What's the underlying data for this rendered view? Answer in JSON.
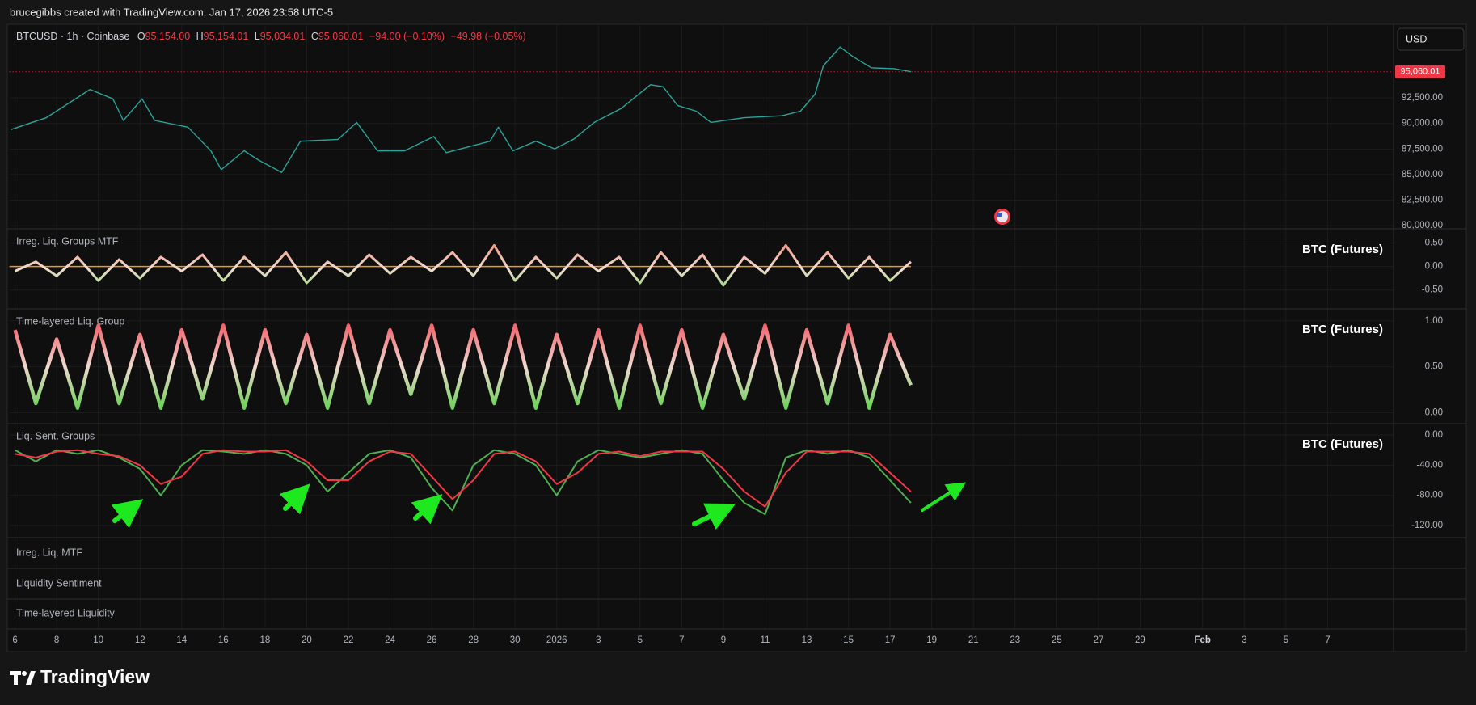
{
  "header": {
    "text": "brucegibbs created with TradingView.com, Jan 17, 2026 23:58 UTC-5"
  },
  "legend": {
    "symbol": "BTCUSD · 1h · Coinbase",
    "open_label": "O",
    "open": "95,154.00",
    "high_label": "H",
    "high": "95,154.01",
    "low_label": "L",
    "low": "95,034.01",
    "close_label": "C",
    "close": "95,060.01",
    "change": "−94.00 (−0.10%)",
    "change2": "−49.98 (−0.05%)"
  },
  "controls": {
    "currency": "USD"
  },
  "empty_panes": [
    "Irreg. Liq. MTF",
    "Liquidity Sentiment",
    "Time-layered Liquidity"
  ],
  "footer": {
    "logo": "TradingView"
  },
  "chart_data": [
    {
      "type": "line",
      "color": "#26a69a",
      "grid": true,
      "x": [
        -0.2,
        1.5,
        3.6,
        4.7,
        5.2,
        6.1,
        6.7,
        8.3,
        9.4,
        9.9,
        11.0,
        11.7,
        12.8,
        13.7,
        15.5,
        16.4,
        17.4,
        18.7,
        20.1,
        20.7,
        22.8,
        23.2,
        23.9,
        25.0,
        25.9,
        26.8,
        27.8,
        29.1,
        30.5,
        31.1,
        31.8,
        32.7,
        33.4,
        35.0,
        36.8,
        37.7,
        38.4,
        38.8,
        39.6,
        40.2,
        41.1,
        42.2,
        43.0
      ],
      "values": [
        89400,
        90560,
        93330,
        92400,
        90290,
        92400,
        90290,
        89640,
        87330,
        85490,
        87330,
        86410,
        85210,
        88260,
        88440,
        90100,
        87330,
        87330,
        88720,
        87150,
        88260,
        89640,
        87330,
        88260,
        87520,
        88440,
        90100,
        91480,
        93790,
        93600,
        91760,
        91200,
        90100,
        90560,
        90750,
        91200,
        92870,
        95640,
        97480,
        96560,
        95450,
        95360,
        95060.01
      ],
      "last_price": {
        "value": 95060.01,
        "label": "95,060.01",
        "color": "#f23645"
      },
      "xlim": [
        -0.27,
        66.15
      ],
      "xticks": [
        {
          "value": 0,
          "label": "6"
        },
        {
          "value": 2,
          "label": "8"
        },
        {
          "value": 4,
          "label": "10"
        },
        {
          "value": 6,
          "label": "12"
        },
        {
          "value": 8,
          "label": "14"
        },
        {
          "value": 10,
          "label": "16"
        },
        {
          "value": 12,
          "label": "18"
        },
        {
          "value": 14,
          "label": "20"
        },
        {
          "value": 16,
          "label": "22"
        },
        {
          "value": 18,
          "label": "24"
        },
        {
          "value": 20,
          "label": "26"
        },
        {
          "value": 22,
          "label": "28"
        },
        {
          "value": 24,
          "label": "30"
        },
        {
          "value": 26,
          "label": "2026"
        },
        {
          "value": 28,
          "label": "3"
        },
        {
          "value": 30,
          "label": "5"
        },
        {
          "value": 32,
          "label": "7"
        },
        {
          "value": 34,
          "label": "9"
        },
        {
          "value": 36,
          "label": "11"
        },
        {
          "value": 38,
          "label": "13"
        },
        {
          "value": 40,
          "label": "15"
        },
        {
          "value": 42,
          "label": "17"
        },
        {
          "value": 44,
          "label": "19"
        },
        {
          "value": 46,
          "label": "21"
        },
        {
          "value": 48,
          "label": "23"
        },
        {
          "value": 50,
          "label": "25"
        },
        {
          "value": 52,
          "label": "27"
        },
        {
          "value": 54,
          "label": "29"
        },
        {
          "value": 57,
          "label": "Feb"
        },
        {
          "value": 59,
          "label": "3"
        },
        {
          "value": 61,
          "label": "5"
        },
        {
          "value": 63,
          "label": "7"
        }
      ],
      "ylim": [
        79700,
        99700
      ],
      "yticks": [
        {
          "value": 92500,
          "label": "92,500.00"
        },
        {
          "value": 90000,
          "label": "90,000.00"
        },
        {
          "value": 87500,
          "label": "87,500.00"
        },
        {
          "value": 85000,
          "label": "85,000.00"
        },
        {
          "value": 82500,
          "label": "82,500.00"
        },
        {
          "value": 80000,
          "label": "80,000.00"
        }
      ]
    },
    {
      "type": "line",
      "title": "Irreg. Liq. Groups MTF",
      "label": "BTC (Futures)",
      "grid": true,
      "colors": [
        "#f2705a",
        "#f0dcd0",
        "#49d12c"
      ],
      "baseline": 0,
      "baseline_color": "#ff9800",
      "x": [
        0,
        1,
        2,
        3,
        4,
        5,
        6,
        7,
        8,
        9,
        10,
        11,
        12,
        13,
        14,
        15,
        16,
        17,
        18,
        19,
        20,
        21,
        22,
        23,
        24,
        25,
        26,
        27,
        28,
        29,
        30,
        31,
        32,
        33,
        34,
        35,
        36,
        37,
        38,
        39,
        40,
        41,
        42,
        43
      ],
      "values": [
        -0.1,
        0.1,
        -0.2,
        0.2,
        -0.3,
        0.15,
        -0.25,
        0.2,
        -0.1,
        0.25,
        -0.3,
        0.2,
        -0.2,
        0.3,
        -0.35,
        0.1,
        -0.2,
        0.25,
        -0.15,
        0.2,
        -0.1,
        0.3,
        -0.2,
        0.45,
        -0.3,
        0.2,
        -0.25,
        0.25,
        -0.1,
        0.2,
        -0.35,
        0.3,
        -0.2,
        0.25,
        -0.4,
        0.2,
        -0.15,
        0.45,
        -0.2,
        0.3,
        -0.25,
        0.2,
        -0.3,
        0.1
      ],
      "ylim": [
        -0.9,
        0.8
      ],
      "yticks": [
        {
          "value": 0.5,
          "label": "0.50"
        },
        {
          "value": 0,
          "label": "0.00"
        },
        {
          "value": -0.5,
          "label": "-0.50"
        }
      ]
    },
    {
      "type": "line",
      "title": "Time-layered Liq. Group",
      "label": "BTC (Futures)",
      "grid": true,
      "colors": [
        "#f23645",
        "#f0d8d0",
        "#3ccf2a"
      ],
      "x": [
        0,
        1,
        2,
        3,
        4,
        5,
        6,
        7,
        8,
        9,
        10,
        11,
        12,
        13,
        14,
        15,
        16,
        17,
        18,
        19,
        20,
        21,
        22,
        23,
        24,
        25,
        26,
        27,
        28,
        29,
        30,
        31,
        32,
        33,
        34,
        35,
        36,
        37,
        38,
        39,
        40,
        41,
        42,
        43
      ],
      "values": [
        0.9,
        0.1,
        0.8,
        0.05,
        0.95,
        0.1,
        0.85,
        0.05,
        0.9,
        0.15,
        0.95,
        0.05,
        0.9,
        0.1,
        0.85,
        0.05,
        0.95,
        0.1,
        0.9,
        0.2,
        0.95,
        0.05,
        0.9,
        0.1,
        0.95,
        0.05,
        0.85,
        0.1,
        0.9,
        0.05,
        0.95,
        0.1,
        0.9,
        0.05,
        0.85,
        0.15,
        0.95,
        0.05,
        0.9,
        0.1,
        0.95,
        0.05,
        0.85,
        0.3
      ],
      "ylim": [
        -0.12,
        1.13
      ],
      "yticks": [
        {
          "value": 1,
          "label": "1.00"
        },
        {
          "value": 0.5,
          "label": "0.50"
        },
        {
          "value": 0,
          "label": "0.00"
        }
      ]
    },
    {
      "type": "line",
      "title": "Liq. Sent. Groups",
      "label": "BTC (Futures)",
      "grid": true,
      "x": [
        0,
        1,
        2,
        3,
        4,
        5,
        6,
        7,
        8,
        9,
        10,
        11,
        12,
        13,
        14,
        15,
        16,
        17,
        18,
        19,
        20,
        21,
        22,
        23,
        24,
        25,
        26,
        27,
        28,
        29,
        30,
        31,
        32,
        33,
        34,
        35,
        36,
        37,
        38,
        39,
        40,
        41,
        42,
        43
      ],
      "series": [
        {
          "color": "#4caf50",
          "values": [
            -20,
            -35,
            -20,
            -25,
            -20,
            -30,
            -45,
            -80,
            -40,
            -20,
            -22,
            -25,
            -20,
            -25,
            -40,
            -75,
            -50,
            -25,
            -20,
            -30,
            -70,
            -100,
            -40,
            -20,
            -25,
            -40,
            -80,
            -35,
            -20,
            -25,
            -30,
            -25,
            -20,
            -25,
            -60,
            -90,
            -105,
            -30,
            -20,
            -25,
            -20,
            -30,
            -60,
            -90
          ]
        },
        {
          "color": "#f23645",
          "values": [
            -25,
            -30,
            -22,
            -20,
            -25,
            -28,
            -40,
            -65,
            -55,
            -25,
            -20,
            -22,
            -22,
            -20,
            -35,
            -60,
            -60,
            -35,
            -22,
            -25,
            -55,
            -85,
            -60,
            -25,
            -22,
            -35,
            -65,
            -50,
            -25,
            -22,
            -28,
            -22,
            -22,
            -22,
            -45,
            -75,
            -95,
            -50,
            -22,
            -22,
            -22,
            -25,
            -50,
            -75
          ]
        }
      ],
      "ylim": [
        -136,
        15
      ],
      "yticks": [
        {
          "value": 0,
          "label": "0.00"
        },
        {
          "value": -40,
          "label": "-40.00"
        },
        {
          "value": -80,
          "label": "-80.00"
        },
        {
          "value": -120,
          "label": "-120.00"
        }
      ]
    }
  ]
}
